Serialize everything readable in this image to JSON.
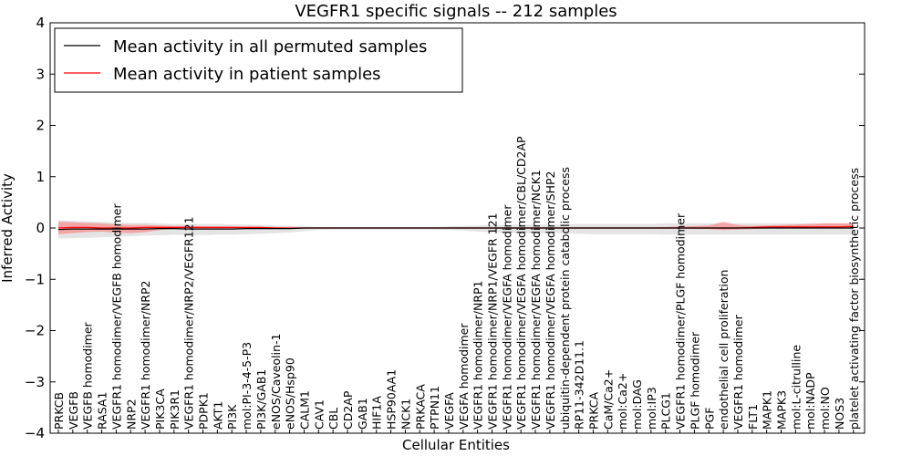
{
  "chart_data": {
    "type": "line",
    "title": "VEGFR1 specific signals -- 212 samples",
    "xlabel": "Cellular Entities",
    "ylabel": "Inferred Activity",
    "ylim": [
      -4,
      4
    ],
    "yticks": [
      -4,
      -3,
      -2,
      -1,
      0,
      1,
      2,
      3,
      4
    ],
    "ytick_labels": [
      "−4",
      "−3",
      "−2",
      "−1",
      "0",
      "1",
      "2",
      "3",
      "4"
    ],
    "legend_position": "top-left",
    "categories": [
      "PRKCB",
      "VEGFB",
      "VEGFB homodimer",
      "RASA1",
      "VEGFR1 homodimer/VEGFB homodimer",
      "NRP2",
      "VEGFR1 homodimer/NRP2",
      "PIK3CA",
      "PIK3R1",
      "VEGFR1 homodimer/NRP2/VEGFR121",
      "PDPK1",
      "AKT1",
      "PI3K",
      "mol:PI-3-4-5-P3",
      "PI3K/GAB1",
      "eNOS/Caveolin-1",
      "eNOS/Hsp90",
      "CALM1",
      "CAV1",
      "CBL",
      "CD2AP",
      "GAB1",
      "HIF1A",
      "HSP90AA1",
      "NCK1",
      "PRKACA",
      "PTPN11",
      "VEGFA",
      "VEGFA homodimer",
      "VEGFR1 homodimer/NRP1",
      "VEGFR1 homodimer/NRP1/VEGFR 121",
      "VEGFR1 homodimer/VEGFA homodimer",
      "VEGFR1 homodimer/VEGFA homodimer/CBL/CD2AP",
      "VEGFR1 homodimer/VEGFA homodimer/NCK1",
      "VEGFR1 homodimer/VEGFA homodimer/SHP2",
      "ubiquitin-dependent protein catabolic process",
      "RP11-342D11.1",
      "PRKCA",
      "CaM/Ca2+",
      "mol:Ca2+",
      "mol:DAG",
      "mol:IP3",
      "PLCG1",
      "VEGFR1 homodimer/PLGF homodimer",
      "PLGF homodimer",
      "PGF",
      "endothelial cell proliferation",
      "VEGFR1 homodimer",
      "FLT1",
      "MAPK1",
      "MAPK3",
      "mol:L-citrulline",
      "mol:NADP",
      "mol:NO",
      "NOS3",
      "platelet activating factor biosynthetic process"
    ],
    "series": [
      {
        "name": "Mean activity in all permuted samples",
        "color": "#000000",
        "values": [
          -0.03,
          -0.02,
          -0.02,
          -0.02,
          -0.02,
          -0.02,
          -0.02,
          -0.01,
          -0.01,
          -0.02,
          -0.02,
          -0.02,
          -0.02,
          -0.01,
          -0.01,
          -0.01,
          -0.01,
          0.0,
          0.0,
          0.0,
          0.0,
          0.0,
          0.0,
          0.0,
          0.0,
          0.0,
          0.0,
          0.0,
          0.0,
          0.0,
          0.0,
          0.0,
          0.0,
          0.0,
          0.0,
          0.0,
          0.0,
          0.0,
          0.0,
          0.0,
          0.0,
          0.0,
          0.0,
          0.0,
          0.0,
          0.0,
          0.0,
          0.0,
          0.0,
          0.0,
          0.0,
          0.0,
          0.0,
          0.0,
          0.0,
          0.0
        ],
        "band": {
          "color": "#bbbbbb",
          "lower": [
            -0.2,
            -0.2,
            -0.19,
            -0.18,
            -0.17,
            -0.16,
            -0.15,
            -0.14,
            -0.13,
            -0.14,
            -0.14,
            -0.13,
            -0.13,
            -0.12,
            -0.11,
            -0.1,
            -0.09,
            -0.06,
            -0.04,
            -0.03,
            -0.03,
            -0.03,
            -0.03,
            -0.03,
            -0.03,
            -0.03,
            -0.03,
            -0.04,
            -0.05,
            -0.07,
            -0.08,
            -0.09,
            -0.1,
            -0.1,
            -0.1,
            -0.1,
            -0.11,
            -0.12,
            -0.12,
            -0.12,
            -0.12,
            -0.12,
            -0.13,
            -0.13,
            -0.13,
            -0.13,
            -0.13,
            -0.13,
            -0.13,
            -0.13,
            -0.13,
            -0.13,
            -0.13,
            -0.13,
            -0.13,
            -0.13
          ],
          "upper": [
            0.15,
            0.14,
            0.13,
            0.12,
            0.11,
            0.1,
            0.1,
            0.09,
            0.08,
            0.08,
            0.08,
            0.08,
            0.07,
            0.07,
            0.06,
            0.05,
            0.05,
            0.03,
            0.02,
            0.02,
            0.02,
            0.02,
            0.02,
            0.02,
            0.02,
            0.02,
            0.02,
            0.03,
            0.04,
            0.05,
            0.06,
            0.06,
            0.07,
            0.07,
            0.07,
            0.07,
            0.08,
            0.08,
            0.08,
            0.08,
            0.08,
            0.08,
            0.09,
            0.09,
            0.09,
            0.09,
            0.09,
            0.09,
            0.09,
            0.09,
            0.09,
            0.09,
            0.09,
            0.09,
            0.09,
            0.09
          ]
        }
      },
      {
        "name": "Mean activity in patient samples",
        "color": "#ff0000",
        "values": [
          0.0,
          0.01,
          0.01,
          0.0,
          0.0,
          0.0,
          0.01,
          0.01,
          0.01,
          0.01,
          0.01,
          0.01,
          0.01,
          0.01,
          0.01,
          0.0,
          0.0,
          0.0,
          0.0,
          0.0,
          0.0,
          0.0,
          0.0,
          0.0,
          0.0,
          0.0,
          0.0,
          0.0,
          0.0,
          0.0,
          0.0,
          0.0,
          0.0,
          0.0,
          0.0,
          0.0,
          0.0,
          0.0,
          0.0,
          0.0,
          0.0,
          0.0,
          0.0,
          0.0,
          0.0,
          0.0,
          0.0,
          0.0,
          0.01,
          0.02,
          0.02,
          0.02,
          0.02,
          0.02,
          0.02,
          0.03
        ],
        "band": {
          "color": "#ff6666",
          "lower": [
            -0.12,
            -0.1,
            -0.08,
            -0.07,
            -0.09,
            -0.1,
            -0.08,
            -0.04,
            -0.02,
            -0.02,
            -0.02,
            -0.02,
            -0.02,
            -0.02,
            -0.01,
            -0.01,
            -0.01,
            -0.01,
            0.0,
            0.0,
            0.0,
            0.0,
            0.0,
            0.0,
            0.0,
            0.0,
            0.0,
            0.0,
            -0.01,
            -0.01,
            -0.01,
            -0.01,
            -0.01,
            -0.01,
            -0.01,
            -0.01,
            -0.01,
            -0.01,
            -0.01,
            -0.01,
            -0.01,
            -0.01,
            -0.01,
            -0.01,
            -0.02,
            -0.02,
            -0.04,
            -0.03,
            -0.02,
            -0.01,
            0.0,
            0.0,
            0.0,
            0.0,
            0.0,
            0.0
          ],
          "upper": [
            0.12,
            0.11,
            0.1,
            0.09,
            0.07,
            0.06,
            0.06,
            0.05,
            0.04,
            0.04,
            0.03,
            0.03,
            0.03,
            0.02,
            0.02,
            0.02,
            0.01,
            0.01,
            0.01,
            0.01,
            0.01,
            0.01,
            0.01,
            0.01,
            0.01,
            0.01,
            0.01,
            0.01,
            0.01,
            0.01,
            0.01,
            0.01,
            0.01,
            0.01,
            0.01,
            0.01,
            0.01,
            0.01,
            0.01,
            0.01,
            0.01,
            0.01,
            0.02,
            0.03,
            0.04,
            0.05,
            0.12,
            0.06,
            0.04,
            0.05,
            0.06,
            0.07,
            0.08,
            0.09,
            0.09,
            0.09
          ]
        }
      }
    ]
  }
}
